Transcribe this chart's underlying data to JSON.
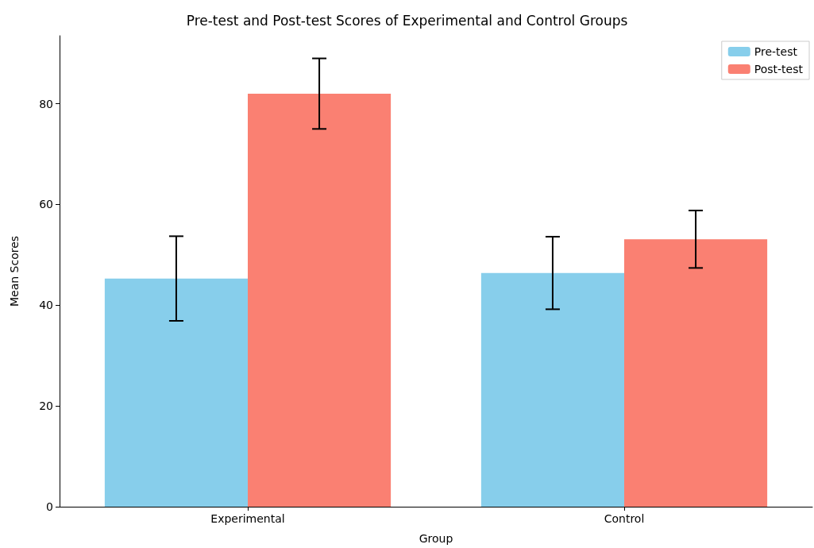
{
  "chart_data": {
    "type": "bar",
    "title": "Pre-test and Post-test Scores of Experimental and Control Groups",
    "xlabel": "Group",
    "ylabel": "Mean Scores",
    "categories": [
      "Experimental",
      "Control"
    ],
    "series": [
      {
        "name": "Pre-test",
        "color": "#87ceeb",
        "values": [
          45.3,
          46.4
        ],
        "errors": [
          8.4,
          7.2
        ]
      },
      {
        "name": "Post-test",
        "color": "#fa8072",
        "values": [
          82.0,
          53.1
        ],
        "errors": [
          7.0,
          5.7
        ]
      }
    ],
    "ylim": [
      0,
      93.5
    ],
    "yticks": [
      0,
      20,
      40,
      60,
      80
    ],
    "grid": false,
    "legend": "top right"
  }
}
